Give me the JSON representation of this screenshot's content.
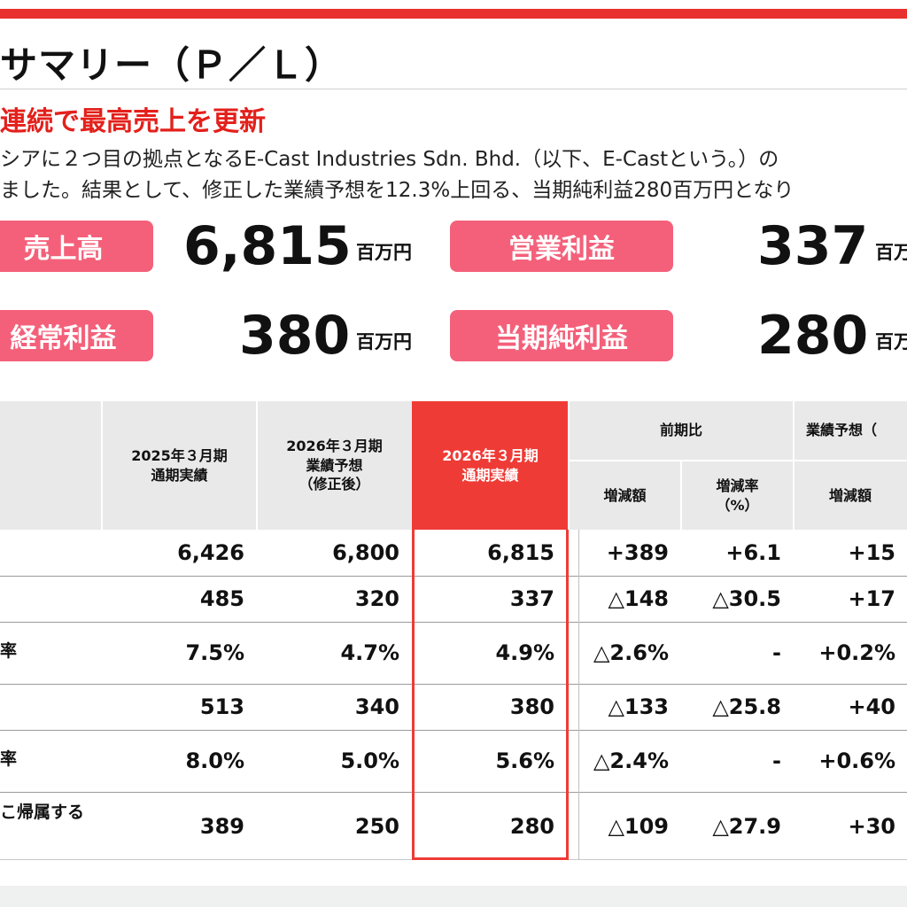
{
  "header": {
    "title": "サマリー（Ｐ／Ｌ）",
    "headline": "連続で最高売上を更新",
    "body_line_1": "シアに２つ目の拠点となるE-Cast Industries Sdn. Bhd.（以下、E-Castという。）の",
    "body_line_2": "ました。結果として、修正した業績予想を12.3%上回る、当期純利益280百万円となり"
  },
  "kpis": {
    "sales": {
      "label": "売上高",
      "value": "6,815",
      "unit": "百万円"
    },
    "operating_profit": {
      "label": "営業利益",
      "value": "337",
      "unit": "百万"
    },
    "ordinary_profit": {
      "label": "経常利益",
      "value": "380",
      "unit": "百万円"
    },
    "net_profit": {
      "label": "当期純利益",
      "value": "280",
      "unit": "百万"
    }
  },
  "table": {
    "headers": {
      "fy2025_actual": "2025年３月期\n通期実績",
      "fy2026_forecast": "2026年３月期\n業績予想\n（修正後）",
      "fy2026_actual": "2026年３月期\n通期実績",
      "yoy": "前期比",
      "forecast_cmp": "業績予想（",
      "yoy_amount": "増減額",
      "yoy_rate": "増減率\n（%）",
      "fc_amount": "増減額"
    },
    "rows": [
      {
        "label": "",
        "c1": "6,426",
        "c2": "6,800",
        "c3": "6,815",
        "c4": "+389",
        "c5": "+6.1",
        "c6": "+15"
      },
      {
        "label": "",
        "c1": "485",
        "c2": "320",
        "c3": "337",
        "c4": "△148",
        "c5": "△30.5",
        "c6": "+17"
      },
      {
        "label": "率",
        "c1": "7.5%",
        "c2": "4.7%",
        "c3": "4.9%",
        "c4": "△2.6%",
        "c5": "-",
        "c6": "+0.2%"
      },
      {
        "label": "",
        "c1": "513",
        "c2": "340",
        "c3": "380",
        "c4": "△133",
        "c5": "△25.8",
        "c6": "+40"
      },
      {
        "label": "率",
        "c1": "8.0%",
        "c2": "5.0%",
        "c3": "5.6%",
        "c4": "△2.4%",
        "c5": "-",
        "c6": "+0.6%"
      },
      {
        "label": "こ帰属する",
        "c1": "389",
        "c2": "250",
        "c3": "280",
        "c4": "△109",
        "c5": "△27.9",
        "c6": "+30"
      }
    ]
  },
  "colors": {
    "accent_red": "#e8302e",
    "pill_pink": "#f4607a",
    "header_gray": "#e9e9e9"
  }
}
